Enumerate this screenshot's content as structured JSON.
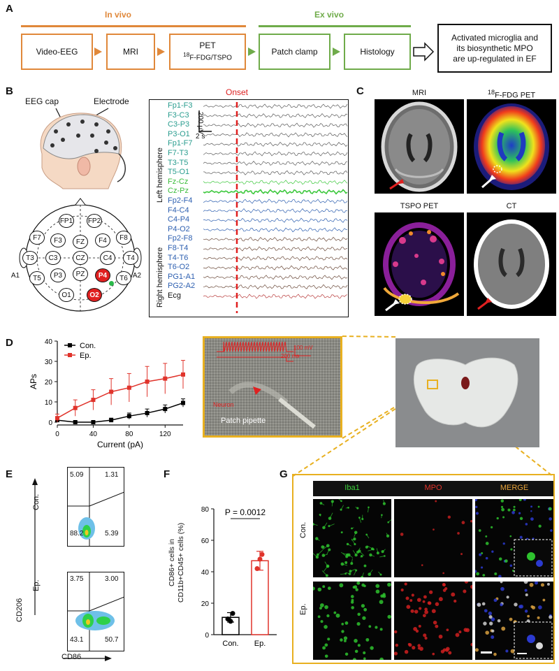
{
  "panel_a": {
    "letter": "A",
    "in_vivo": "In vivo",
    "ex_vivo": "Ex vivo",
    "steps": [
      "Video-EEG",
      "MRI",
      "PET",
      "Patch clamp",
      "Histology"
    ],
    "pet_sub": "18F-FDG/TSPO",
    "pet_sub_sup": "18",
    "pet_sub_rest": "F-FDG/TSPO",
    "conclusion": "Activated microglia and its biosynthetic MPO are up-regulated in EF",
    "conclusion_l1": "Activated microglia and",
    "conclusion_l2": "its biosynthetic MPO",
    "conclusion_l3": "are up-regulated in EF",
    "colors": {
      "in_vivo": "#e0883a",
      "ex_vivo": "#6fab4a"
    }
  },
  "panel_b": {
    "letter": "B",
    "eeg_cap": "EEG cap",
    "electrode": "Electrode",
    "electrodes": [
      "FP1",
      "FP2",
      "F7",
      "F3",
      "FZ",
      "F4",
      "F8",
      "T3",
      "C3",
      "CZ",
      "C4",
      "T4",
      "T5",
      "P3",
      "PZ",
      "P4",
      "T6",
      "O1",
      "O2",
      "A1",
      "A2"
    ],
    "onset": "Onset",
    "scale_uv": "200 μV",
    "scale_s": "2 s",
    "left_hemisphere": "Left hemisphere",
    "right_hemisphere": "Right hemisphere",
    "channels_left": [
      "Fp1-F3",
      "F3-C3",
      "C3-P3",
      "P3-O1",
      "Fp1-F7",
      "F7-T3",
      "T3-T5",
      "T5-O1"
    ],
    "channels_mid": [
      "Fz-Cz",
      "Cz-Pz"
    ],
    "channels_right": [
      "Fp2-F4",
      "F4-C4",
      "C4-P4",
      "P4-O2",
      "Fp2-F8",
      "F8-T4",
      "T4-T6",
      "T6-O2",
      "PG1-A1",
      "PG2-A2"
    ],
    "ecg": "Ecg"
  },
  "panel_c": {
    "letter": "C",
    "titles": [
      "MRI",
      "18F-FDG PET",
      "TSPO PET",
      "CT"
    ],
    "fdg_sup": "18",
    "fdg_rest": "F-FDG PET"
  },
  "panel_d": {
    "letter": "D",
    "neuron": "Neuron",
    "patch_pipette": "Patch pipette",
    "trace_mv": "100 mV",
    "trace_ms": "200 ms"
  },
  "panel_e": {
    "letter": "E",
    "con": "Con.",
    "ep": "Ep.",
    "ylabel": "CD206",
    "xlabel": "CD86",
    "con_q": {
      "ul": "5.09",
      "ur": "1.31",
      "ll": "88.2",
      "lr": "5.39"
    },
    "ep_q": {
      "ul": "3.75",
      "ur": "3.00",
      "ll": "43.1",
      "lr": "50.7"
    }
  },
  "panel_f": {
    "letter": "F",
    "ylabel_l1": "CD86+ cells in",
    "ylabel_l2": "CD11b+CD45+ cells (%)",
    "pvalue": "P = 0.0012"
  },
  "panel_g": {
    "letter": "G",
    "headers": [
      "Iba1",
      "MPO",
      "MERGE"
    ],
    "header_colors": [
      "#3cd13c",
      "#e0332b",
      "#e8a43a"
    ],
    "rows": [
      "Con.",
      "Ep."
    ]
  },
  "chart_data": [
    {
      "type": "line",
      "panel": "D",
      "xlabel": "Current (pA)",
      "ylabel": "APs",
      "xlim": [
        0,
        140
      ],
      "ylim": [
        0,
        40
      ],
      "xticks": [
        0,
        40,
        80,
        120
      ],
      "yticks": [
        0,
        10,
        20,
        30,
        40
      ],
      "legend": "top-left",
      "series": [
        {
          "name": "Con.",
          "color": "#000000",
          "x": [
            0,
            20,
            40,
            60,
            80,
            100,
            120,
            140
          ],
          "y": [
            1,
            0,
            0,
            1,
            3,
            4.5,
            6.5,
            9.5
          ],
          "err": [
            1,
            0.5,
            0.5,
            1,
            1.5,
            2,
            2,
            2
          ]
        },
        {
          "name": "Ep.",
          "color": "#e0332b",
          "x": [
            0,
            20,
            40,
            60,
            80,
            100,
            120,
            140
          ],
          "y": [
            2,
            7,
            11,
            15,
            17,
            20,
            21.5,
            23.5
          ],
          "err": [
            2,
            4,
            5,
            6.5,
            7,
            7.5,
            7.5,
            7
          ]
        }
      ]
    },
    {
      "type": "bar",
      "panel": "F",
      "categories": [
        "Con.",
        "Ep."
      ],
      "values": [
        11,
        47
      ],
      "err": [
        3,
        6
      ],
      "points": [
        [
          10,
          13.5,
          8.5
        ],
        [
          42,
          51,
          48
        ]
      ],
      "colors": [
        "#000000",
        "#e0332b"
      ],
      "ylabel": "CD86+ cells in CD11b+CD45+ cells (%)",
      "ylim": [
        0,
        80
      ],
      "yticks": [
        0,
        20,
        40,
        60,
        80
      ],
      "annotation": "P = 0.0012"
    }
  ]
}
